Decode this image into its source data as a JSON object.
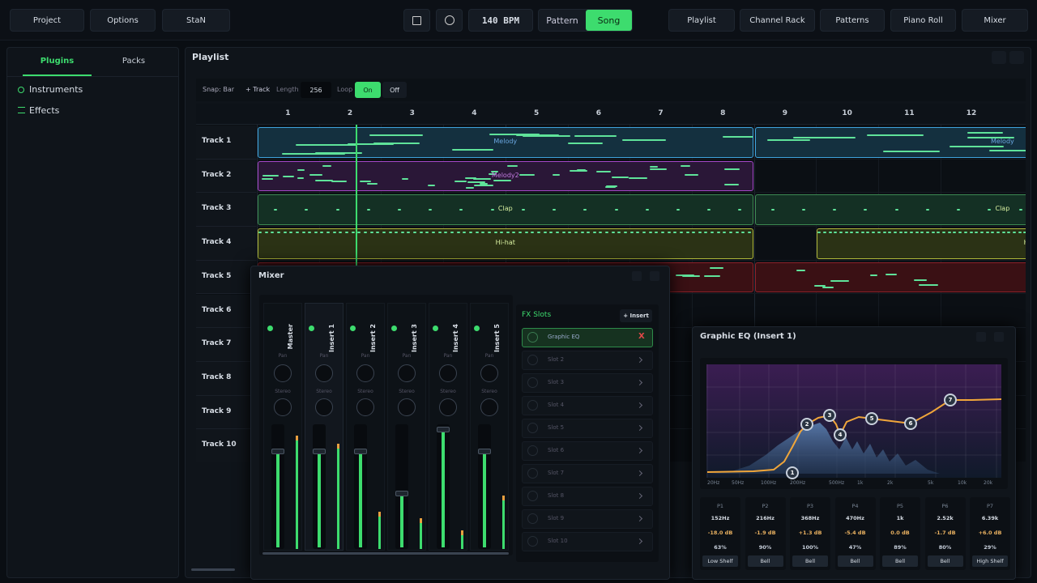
{
  "topbar": {
    "left": [
      "Project",
      "Options",
      "StaN"
    ],
    "bpm": "140 BPM",
    "modes": [
      "Pattern",
      "Song"
    ],
    "right": [
      "Playlist",
      "Channel Rack",
      "Patterns",
      "Piano Roll",
      "Mixer"
    ]
  },
  "sidebar": {
    "tabs": [
      "Plugins",
      "Packs"
    ],
    "items": [
      "Instruments",
      "Effects"
    ]
  },
  "playlist": {
    "title": "Playlist",
    "snap": "Snap: Bar",
    "add_track": "+ Track",
    "length_label": "Length",
    "length": "256",
    "loop_label": "Loop",
    "loop_on": "On",
    "loop_off": "Off",
    "bars": [
      "1",
      "2",
      "3",
      "4",
      "5",
      "6",
      "7",
      "8",
      "9",
      "10",
      "11",
      "12"
    ],
    "tracks": [
      "Track 1",
      "Track 2",
      "Track 3",
      "Track 4",
      "Track 5",
      "Track 6",
      "Track 7",
      "Track 8",
      "Track 9",
      "Track 10"
    ],
    "clips": [
      "Melody",
      "Melody",
      "Melody2",
      "Clap",
      "Clap",
      "Hi-hat",
      "Hi-hat"
    ]
  },
  "mixer": {
    "title": "Mixer",
    "channels": [
      "Master",
      "Insert 1",
      "Insert 2",
      "Insert 3",
      "Insert 4",
      "Insert 5"
    ],
    "pan_label": "Pan",
    "stereo_label": "Stereo",
    "fx_title": "FX Slots",
    "add_insert": "+ Insert",
    "slots": [
      "Graphic EQ",
      "Slot 2",
      "Slot 3",
      "Slot 4",
      "Slot 5",
      "Slot 6",
      "Slot 7",
      "Slot 8",
      "Slot 9",
      "Slot 10"
    ],
    "remove": "X"
  },
  "eq": {
    "title": "Graphic EQ (Insert 1)",
    "freq_labels": [
      "20Hz",
      "50Hz",
      "100Hz",
      "200Hz",
      "500Hz",
      "1k",
      "2k",
      "5k",
      "10k",
      "20k"
    ],
    "nodes": [
      "1",
      "2",
      "3",
      "4",
      "5",
      "6",
      "7"
    ],
    "bands": [
      {
        "name": "P1",
        "freq": "152Hz",
        "gain": "-18.0 dB",
        "q": "63%",
        "type": "Low Shelf"
      },
      {
        "name": "P2",
        "freq": "216Hz",
        "gain": "-1.9 dB",
        "q": "90%",
        "type": "Bell"
      },
      {
        "name": "P3",
        "freq": "368Hz",
        "gain": "+1.3 dB",
        "q": "100%",
        "type": "Bell"
      },
      {
        "name": "P4",
        "freq": "470Hz",
        "gain": "-5.4 dB",
        "q": "47%",
        "type": "Bell"
      },
      {
        "name": "P5",
        "freq": "1k",
        "gain": "0.0 dB",
        "q": "89%",
        "type": "Bell"
      },
      {
        "name": "P6",
        "freq": "2.52k",
        "gain": "-1.7 dB",
        "q": "80%",
        "type": "Bell"
      },
      {
        "name": "P7",
        "freq": "6.39k",
        "gain": "+6.0 dB",
        "q": "29%",
        "type": "High Shelf"
      }
    ]
  }
}
